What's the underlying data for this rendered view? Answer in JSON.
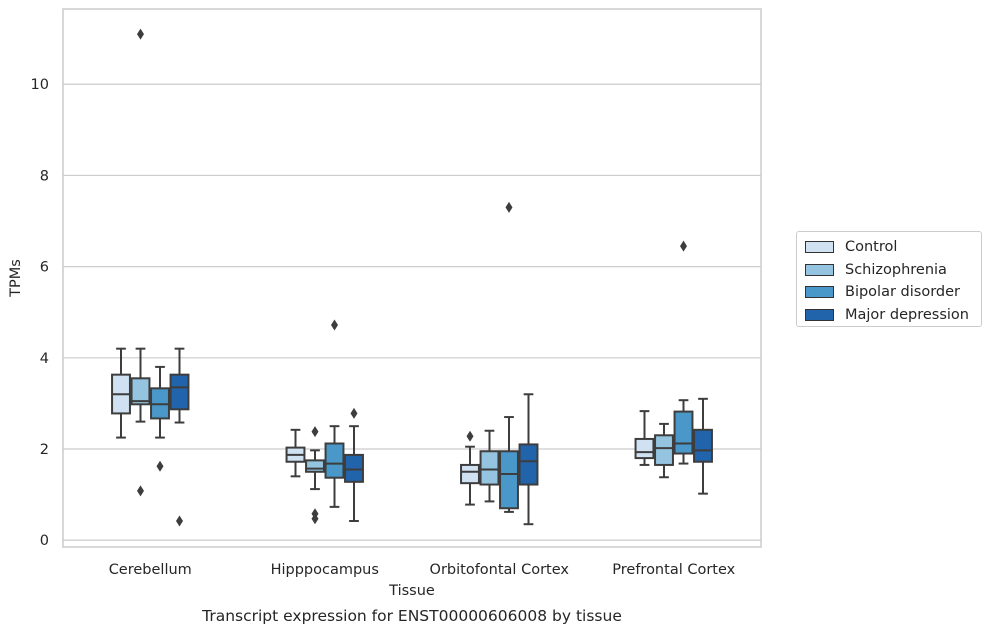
{
  "chart_data": {
    "type": "box",
    "caption": "Transcript expression for ENST00000606008 by tissue",
    "xlabel": "Tissue",
    "ylabel": "TPMs",
    "ylim": [
      -0.15,
      11.65
    ],
    "yticks": [
      0,
      2,
      4,
      6,
      8,
      10
    ],
    "grid": "horizontal",
    "legend_placement": "right",
    "categories": [
      "Cerebellum",
      "Hipppocampus",
      "Orbitofontal Cortex",
      "Prefrontal Cortex"
    ],
    "series": [
      {
        "name": "Control",
        "color": "#d0e1f2",
        "boxes": [
          {
            "whislo": 2.25,
            "q1": 2.78,
            "med": 3.2,
            "q3": 3.63,
            "whishi": 4.2,
            "fliers": []
          },
          {
            "whislo": 1.4,
            "q1": 1.72,
            "med": 1.87,
            "q3": 2.03,
            "whishi": 2.42,
            "fliers": []
          },
          {
            "whislo": 0.78,
            "q1": 1.25,
            "med": 1.5,
            "q3": 1.65,
            "whishi": 2.05,
            "fliers": [
              2.28
            ]
          },
          {
            "whislo": 1.65,
            "q1": 1.8,
            "med": 1.93,
            "q3": 2.22,
            "whishi": 2.83,
            "fliers": []
          }
        ]
      },
      {
        "name": "Schizophrenia",
        "color": "#94c4df",
        "boxes": [
          {
            "whislo": 2.6,
            "q1": 2.98,
            "med": 3.05,
            "q3": 3.55,
            "whishi": 4.2,
            "fliers": [
              1.08,
              11.1
            ]
          },
          {
            "whislo": 1.12,
            "q1": 1.5,
            "med": 1.57,
            "q3": 1.75,
            "whishi": 1.97,
            "fliers": [
              2.38,
              0.58,
              0.47
            ]
          },
          {
            "whislo": 0.85,
            "q1": 1.22,
            "med": 1.55,
            "q3": 1.95,
            "whishi": 2.4,
            "fliers": []
          },
          {
            "whislo": 1.38,
            "q1": 1.65,
            "med": 2.02,
            "q3": 2.3,
            "whishi": 2.55,
            "fliers": []
          }
        ]
      },
      {
        "name": "Bipolar disorder",
        "color": "#4a98c9",
        "boxes": [
          {
            "whislo": 2.25,
            "q1": 2.67,
            "med": 2.98,
            "q3": 3.33,
            "whishi": 3.8,
            "fliers": [
              1.62
            ]
          },
          {
            "whislo": 0.73,
            "q1": 1.37,
            "med": 1.68,
            "q3": 2.12,
            "whishi": 2.5,
            "fliers": [
              4.72
            ]
          },
          {
            "whislo": 0.62,
            "q1": 0.7,
            "med": 1.45,
            "q3": 1.95,
            "whishi": 2.7,
            "fliers": [
              7.3
            ]
          },
          {
            "whislo": 1.68,
            "q1": 1.9,
            "med": 2.12,
            "q3": 2.82,
            "whishi": 3.07,
            "fliers": [
              6.45
            ]
          }
        ]
      },
      {
        "name": "Major depression",
        "color": "#2264ab",
        "boxes": [
          {
            "whislo": 2.58,
            "q1": 2.87,
            "med": 3.35,
            "q3": 3.63,
            "whishi": 4.2,
            "fliers": [
              0.42
            ]
          },
          {
            "whislo": 0.42,
            "q1": 1.28,
            "med": 1.55,
            "q3": 1.87,
            "whishi": 2.5,
            "fliers": [
              2.78
            ]
          },
          {
            "whislo": 0.35,
            "q1": 1.22,
            "med": 1.73,
            "q3": 2.1,
            "whishi": 3.2,
            "fliers": []
          },
          {
            "whislo": 1.02,
            "q1": 1.72,
            "med": 1.97,
            "q3": 2.42,
            "whishi": 3.1,
            "fliers": []
          }
        ]
      }
    ]
  }
}
